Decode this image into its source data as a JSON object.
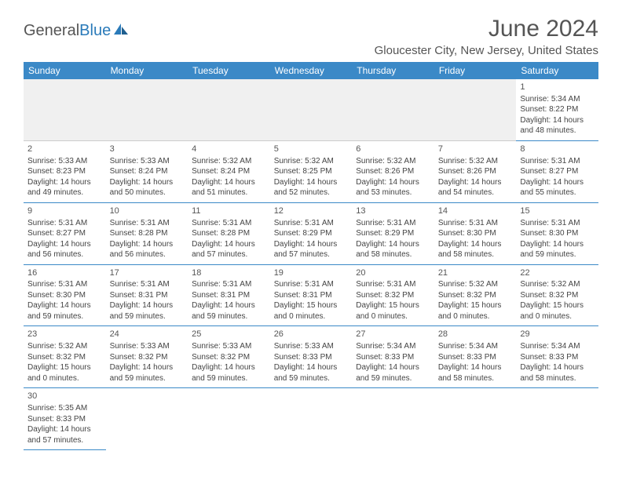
{
  "logo": {
    "text_gray": "General",
    "text_blue": "Blue"
  },
  "title": "June 2024",
  "location": "Gloucester City, New Jersey, United States",
  "colors": {
    "header_bg": "#3b89c7",
    "header_text": "#ffffff",
    "border": "#3b89c7",
    "text": "#444444",
    "title_text": "#555555"
  },
  "day_names": [
    "Sunday",
    "Monday",
    "Tuesday",
    "Wednesday",
    "Thursday",
    "Friday",
    "Saturday"
  ],
  "weeks": [
    [
      null,
      null,
      null,
      null,
      null,
      null,
      {
        "n": "1",
        "sr": "Sunrise: 5:34 AM",
        "ss": "Sunset: 8:22 PM",
        "d1": "Daylight: 14 hours",
        "d2": "and 48 minutes."
      }
    ],
    [
      {
        "n": "2",
        "sr": "Sunrise: 5:33 AM",
        "ss": "Sunset: 8:23 PM",
        "d1": "Daylight: 14 hours",
        "d2": "and 49 minutes."
      },
      {
        "n": "3",
        "sr": "Sunrise: 5:33 AM",
        "ss": "Sunset: 8:24 PM",
        "d1": "Daylight: 14 hours",
        "d2": "and 50 minutes."
      },
      {
        "n": "4",
        "sr": "Sunrise: 5:32 AM",
        "ss": "Sunset: 8:24 PM",
        "d1": "Daylight: 14 hours",
        "d2": "and 51 minutes."
      },
      {
        "n": "5",
        "sr": "Sunrise: 5:32 AM",
        "ss": "Sunset: 8:25 PM",
        "d1": "Daylight: 14 hours",
        "d2": "and 52 minutes."
      },
      {
        "n": "6",
        "sr": "Sunrise: 5:32 AM",
        "ss": "Sunset: 8:26 PM",
        "d1": "Daylight: 14 hours",
        "d2": "and 53 minutes."
      },
      {
        "n": "7",
        "sr": "Sunrise: 5:32 AM",
        "ss": "Sunset: 8:26 PM",
        "d1": "Daylight: 14 hours",
        "d2": "and 54 minutes."
      },
      {
        "n": "8",
        "sr": "Sunrise: 5:31 AM",
        "ss": "Sunset: 8:27 PM",
        "d1": "Daylight: 14 hours",
        "d2": "and 55 minutes."
      }
    ],
    [
      {
        "n": "9",
        "sr": "Sunrise: 5:31 AM",
        "ss": "Sunset: 8:27 PM",
        "d1": "Daylight: 14 hours",
        "d2": "and 56 minutes."
      },
      {
        "n": "10",
        "sr": "Sunrise: 5:31 AM",
        "ss": "Sunset: 8:28 PM",
        "d1": "Daylight: 14 hours",
        "d2": "and 56 minutes."
      },
      {
        "n": "11",
        "sr": "Sunrise: 5:31 AM",
        "ss": "Sunset: 8:28 PM",
        "d1": "Daylight: 14 hours",
        "d2": "and 57 minutes."
      },
      {
        "n": "12",
        "sr": "Sunrise: 5:31 AM",
        "ss": "Sunset: 8:29 PM",
        "d1": "Daylight: 14 hours",
        "d2": "and 57 minutes."
      },
      {
        "n": "13",
        "sr": "Sunrise: 5:31 AM",
        "ss": "Sunset: 8:29 PM",
        "d1": "Daylight: 14 hours",
        "d2": "and 58 minutes."
      },
      {
        "n": "14",
        "sr": "Sunrise: 5:31 AM",
        "ss": "Sunset: 8:30 PM",
        "d1": "Daylight: 14 hours",
        "d2": "and 58 minutes."
      },
      {
        "n": "15",
        "sr": "Sunrise: 5:31 AM",
        "ss": "Sunset: 8:30 PM",
        "d1": "Daylight: 14 hours",
        "d2": "and 59 minutes."
      }
    ],
    [
      {
        "n": "16",
        "sr": "Sunrise: 5:31 AM",
        "ss": "Sunset: 8:30 PM",
        "d1": "Daylight: 14 hours",
        "d2": "and 59 minutes."
      },
      {
        "n": "17",
        "sr": "Sunrise: 5:31 AM",
        "ss": "Sunset: 8:31 PM",
        "d1": "Daylight: 14 hours",
        "d2": "and 59 minutes."
      },
      {
        "n": "18",
        "sr": "Sunrise: 5:31 AM",
        "ss": "Sunset: 8:31 PM",
        "d1": "Daylight: 14 hours",
        "d2": "and 59 minutes."
      },
      {
        "n": "19",
        "sr": "Sunrise: 5:31 AM",
        "ss": "Sunset: 8:31 PM",
        "d1": "Daylight: 15 hours",
        "d2": "and 0 minutes."
      },
      {
        "n": "20",
        "sr": "Sunrise: 5:31 AM",
        "ss": "Sunset: 8:32 PM",
        "d1": "Daylight: 15 hours",
        "d2": "and 0 minutes."
      },
      {
        "n": "21",
        "sr": "Sunrise: 5:32 AM",
        "ss": "Sunset: 8:32 PM",
        "d1": "Daylight: 15 hours",
        "d2": "and 0 minutes."
      },
      {
        "n": "22",
        "sr": "Sunrise: 5:32 AM",
        "ss": "Sunset: 8:32 PM",
        "d1": "Daylight: 15 hours",
        "d2": "and 0 minutes."
      }
    ],
    [
      {
        "n": "23",
        "sr": "Sunrise: 5:32 AM",
        "ss": "Sunset: 8:32 PM",
        "d1": "Daylight: 15 hours",
        "d2": "and 0 minutes."
      },
      {
        "n": "24",
        "sr": "Sunrise: 5:33 AM",
        "ss": "Sunset: 8:32 PM",
        "d1": "Daylight: 14 hours",
        "d2": "and 59 minutes."
      },
      {
        "n": "25",
        "sr": "Sunrise: 5:33 AM",
        "ss": "Sunset: 8:32 PM",
        "d1": "Daylight: 14 hours",
        "d2": "and 59 minutes."
      },
      {
        "n": "26",
        "sr": "Sunrise: 5:33 AM",
        "ss": "Sunset: 8:33 PM",
        "d1": "Daylight: 14 hours",
        "d2": "and 59 minutes."
      },
      {
        "n": "27",
        "sr": "Sunrise: 5:34 AM",
        "ss": "Sunset: 8:33 PM",
        "d1": "Daylight: 14 hours",
        "d2": "and 59 minutes."
      },
      {
        "n": "28",
        "sr": "Sunrise: 5:34 AM",
        "ss": "Sunset: 8:33 PM",
        "d1": "Daylight: 14 hours",
        "d2": "and 58 minutes."
      },
      {
        "n": "29",
        "sr": "Sunrise: 5:34 AM",
        "ss": "Sunset: 8:33 PM",
        "d1": "Daylight: 14 hours",
        "d2": "and 58 minutes."
      }
    ],
    [
      {
        "n": "30",
        "sr": "Sunrise: 5:35 AM",
        "ss": "Sunset: 8:33 PM",
        "d1": "Daylight: 14 hours",
        "d2": "and 57 minutes."
      },
      null,
      null,
      null,
      null,
      null,
      null
    ]
  ]
}
